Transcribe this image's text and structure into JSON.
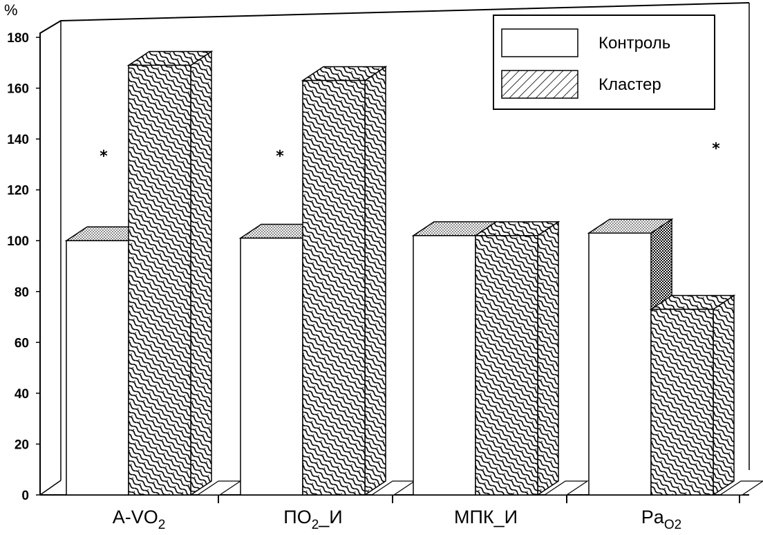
{
  "chart_data": {
    "type": "bar",
    "y_unit": "%",
    "ylim": [
      0,
      180
    ],
    "yticks": [
      0,
      20,
      40,
      60,
      80,
      100,
      120,
      140,
      160,
      180
    ],
    "categories": [
      {
        "base": "A-VO",
        "sub": "2",
        "suffix": ""
      },
      {
        "base": "ПО",
        "sub": "2",
        "suffix": "_И"
      },
      {
        "base": "МПК_И",
        "sub": "",
        "suffix": ""
      },
      {
        "base": "Pa",
        "sub": "O2",
        "suffix": ""
      }
    ],
    "series": [
      {
        "name": "Контроль",
        "values": [
          100,
          101,
          102,
          103
        ]
      },
      {
        "name": "Кластер",
        "values": [
          169,
          163,
          102,
          73
        ]
      }
    ],
    "significance_marks": [
      "*",
      "*",
      "",
      "*"
    ],
    "legend_position": "top-right",
    "grid": false
  }
}
